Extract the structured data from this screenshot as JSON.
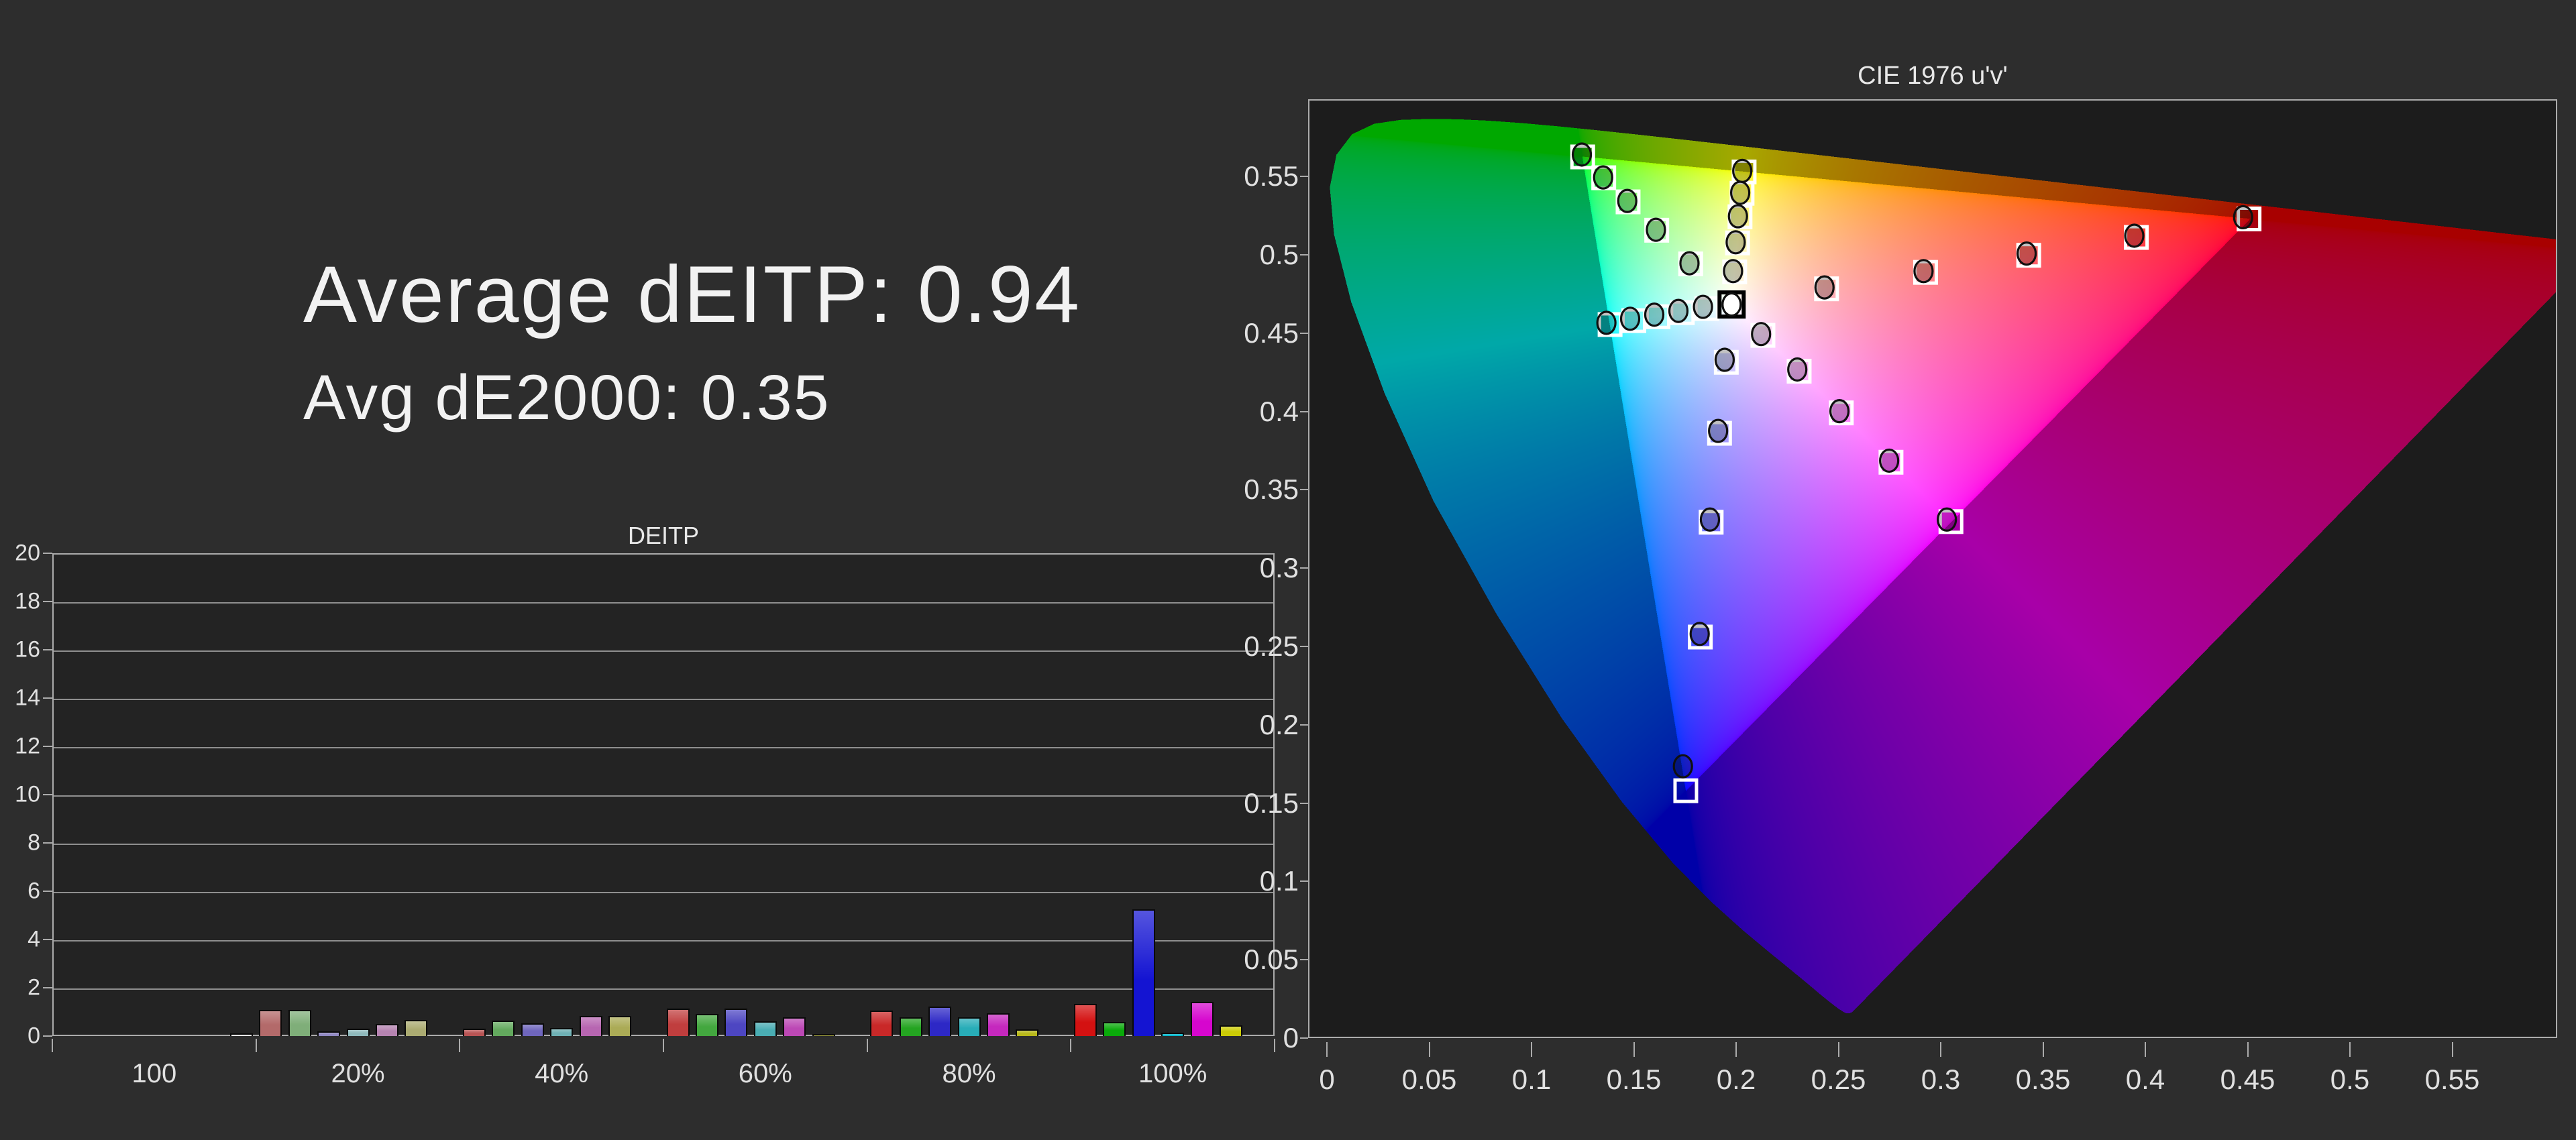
{
  "summary": {
    "line1": "Average dEITP: 0.94",
    "line2": "Avg dE2000: 0.35"
  },
  "chart_data": [
    {
      "type": "bar",
      "title": "DEITP",
      "categories": [
        "100",
        "20%",
        "40%",
        "60%",
        "80%",
        "100%"
      ],
      "bar_names": [
        "red",
        "green",
        "blue",
        "cyan",
        "magenta",
        "yellow",
        "white"
      ],
      "series_by_category": [
        {
          "values": [
            0,
            0,
            0,
            0,
            0,
            0,
            0.12
          ],
          "colors": [
            "#b36a6a",
            "#7fae79",
            "#9088c2",
            "#8fb9bc",
            "#b684b1",
            "#abab72",
            "#f0f0f0"
          ]
        },
        {
          "values": [
            1.07,
            1.07,
            0.2,
            0.3,
            0.5,
            0.68,
            0
          ],
          "colors": [
            "#b36a6a",
            "#7fae79",
            "#9088c2",
            "#8fb9bc",
            "#b684b1",
            "#abab72",
            "#f0f0f0"
          ]
        },
        {
          "values": [
            0.3,
            0.65,
            0.52,
            0.33,
            0.82,
            0.82,
            0
          ],
          "colors": [
            "#b85454",
            "#63a95e",
            "#6f66bd",
            "#6fb1b5",
            "#b766b1",
            "#abab56",
            "#f0f0f0"
          ]
        },
        {
          "values": [
            1.15,
            0.93,
            1.15,
            0.61,
            0.78,
            0.06,
            0
          ],
          "colors": [
            "#c03e3e",
            "#43a73f",
            "#4d46c2",
            "#4aadb3",
            "#bc48b5",
            "#a6a636",
            "#f0f0f0"
          ]
        },
        {
          "values": [
            1.05,
            0.78,
            1.22,
            0.78,
            0.95,
            0.28,
            0
          ],
          "colors": [
            "#c92828",
            "#24a421",
            "#2d28c6",
            "#28adb8",
            "#c528be",
            "#b8b81a",
            "#f0f0f0"
          ]
        },
        {
          "values": [
            1.33,
            0.58,
            5.25,
            0.15,
            1.42,
            0.45,
            0
          ],
          "colors": [
            "#d41111",
            "#0aaa0a",
            "#1414d2",
            "#06b6ca",
            "#d606ce",
            "#cccc06",
            "#f0f0f0"
          ]
        }
      ],
      "ylim": [
        0,
        20
      ],
      "ytick_step": 2,
      "grid": true
    },
    {
      "type": "scatter",
      "title": "CIE 1976 u'v'",
      "xlim": [
        0,
        0.6013
      ],
      "ylim": [
        0,
        0.5993
      ],
      "xticks": [
        0,
        0.05,
        0.1,
        0.15,
        0.2,
        0.25,
        0.3,
        0.35,
        0.4,
        0.45,
        0.5,
        0.55
      ],
      "yticks": [
        0,
        0.05,
        0.1,
        0.15,
        0.2,
        0.25,
        0.3,
        0.35,
        0.4,
        0.45,
        0.5,
        0.55
      ],
      "white_point": {
        "name": "white-D65",
        "u": 0.1978,
        "v": 0.4683
      },
      "gamut_rec709_uv": {
        "red": [
          0.4507,
          0.5229
        ],
        "green": [
          0.125,
          0.5625
        ],
        "blue": [
          0.1754,
          0.1579
        ]
      },
      "outside_gamut_dim_factor": 0.66,
      "targets_uv": [
        {
          "name": "red-20",
          "u": 0.2442,
          "v": 0.4783
        },
        {
          "name": "red-40",
          "u": 0.2926,
          "v": 0.4888
        },
        {
          "name": "red-60",
          "u": 0.343,
          "v": 0.4997
        },
        {
          "name": "red-80",
          "u": 0.3956,
          "v": 0.5111
        },
        {
          "name": "red-100",
          "u": 0.4507,
          "v": 0.5229
        },
        {
          "name": "green-20",
          "u": 0.1778,
          "v": 0.4942
        },
        {
          "name": "green-40",
          "u": 0.1612,
          "v": 0.5157
        },
        {
          "name": "green-60",
          "u": 0.1472,
          "v": 0.5338
        },
        {
          "name": "green-80",
          "u": 0.1353,
          "v": 0.5492
        },
        {
          "name": "green-100",
          "u": 0.125,
          "v": 0.5625
        },
        {
          "name": "blue-20",
          "u": 0.1952,
          "v": 0.4314
        },
        {
          "name": "blue-40",
          "u": 0.1919,
          "v": 0.3861
        },
        {
          "name": "blue-60",
          "u": 0.1878,
          "v": 0.3293
        },
        {
          "name": "blue-80",
          "u": 0.1825,
          "v": 0.256
        },
        {
          "name": "blue-100",
          "u": 0.1754,
          "v": 0.1579
        },
        {
          "name": "cyan-20",
          "u": 0.1857,
          "v": 0.4657
        },
        {
          "name": "cyan-40",
          "u": 0.1737,
          "v": 0.4631
        },
        {
          "name": "cyan-60",
          "u": 0.1618,
          "v": 0.4605
        },
        {
          "name": "cyan-80",
          "u": 0.15,
          "v": 0.458
        },
        {
          "name": "cyan-100",
          "u": 0.1384,
          "v": 0.4555
        },
        {
          "name": "magenta-20",
          "u": 0.2131,
          "v": 0.4486
        },
        {
          "name": "magenta-40",
          "u": 0.2308,
          "v": 0.4257
        },
        {
          "name": "magenta-60",
          "u": 0.2514,
          "v": 0.3991
        },
        {
          "name": "magenta-80",
          "u": 0.2757,
          "v": 0.3676
        },
        {
          "name": "magenta-100",
          "u": 0.305,
          "v": 0.3297
        },
        {
          "name": "yellow-20",
          "u": 0.1993,
          "v": 0.4891
        },
        {
          "name": "yellow-40",
          "u": 0.2007,
          "v": 0.5076
        },
        {
          "name": "yellow-60",
          "u": 0.2019,
          "v": 0.5243
        },
        {
          "name": "yellow-80",
          "u": 0.2029,
          "v": 0.5393
        },
        {
          "name": "yellow-100",
          "u": 0.2039,
          "v": 0.5529
        }
      ],
      "measurements_uv": [
        {
          "name": "meas-red-20",
          "u": 0.2432,
          "v": 0.4792
        },
        {
          "name": "meas-red-40",
          "u": 0.2916,
          "v": 0.4896
        },
        {
          "name": "meas-red-60",
          "u": 0.342,
          "v": 0.5008
        },
        {
          "name": "meas-red-80",
          "u": 0.3946,
          "v": 0.5122
        },
        {
          "name": "meas-red-100",
          "u": 0.4478,
          "v": 0.524
        },
        {
          "name": "meas-green-20",
          "u": 0.1772,
          "v": 0.4946
        },
        {
          "name": "meas-green-40",
          "u": 0.1608,
          "v": 0.516
        },
        {
          "name": "meas-green-60",
          "u": 0.1468,
          "v": 0.5344
        },
        {
          "name": "meas-green-80",
          "u": 0.135,
          "v": 0.5494
        },
        {
          "name": "meas-green-100",
          "u": 0.1246,
          "v": 0.564
        },
        {
          "name": "meas-blue-20",
          "u": 0.1944,
          "v": 0.433
        },
        {
          "name": "meas-blue-40",
          "u": 0.1912,
          "v": 0.3876
        },
        {
          "name": "meas-blue-60",
          "u": 0.1872,
          "v": 0.331
        },
        {
          "name": "meas-blue-80",
          "u": 0.1822,
          "v": 0.258
        },
        {
          "name": "meas-blue-100",
          "u": 0.174,
          "v": 0.1735
        },
        {
          "name": "meas-cyan-20",
          "u": 0.1838,
          "v": 0.4668
        },
        {
          "name": "meas-cyan-40",
          "u": 0.1718,
          "v": 0.4642
        },
        {
          "name": "meas-cyan-60",
          "u": 0.16,
          "v": 0.4618
        },
        {
          "name": "meas-cyan-80",
          "u": 0.1482,
          "v": 0.4592
        },
        {
          "name": "meas-cyan-100",
          "u": 0.1366,
          "v": 0.4566
        },
        {
          "name": "meas-magenta-20",
          "u": 0.2122,
          "v": 0.4494
        },
        {
          "name": "meas-magenta-40",
          "u": 0.2299,
          "v": 0.4268
        },
        {
          "name": "meas-magenta-60",
          "u": 0.2505,
          "v": 0.4002
        },
        {
          "name": "meas-magenta-80",
          "u": 0.2748,
          "v": 0.3686
        },
        {
          "name": "meas-magenta-100",
          "u": 0.303,
          "v": 0.331
        },
        {
          "name": "meas-yellow-20",
          "u": 0.1985,
          "v": 0.4896
        },
        {
          "name": "meas-yellow-40",
          "u": 0.1998,
          "v": 0.508
        },
        {
          "name": "meas-yellow-60",
          "u": 0.2009,
          "v": 0.5246
        },
        {
          "name": "meas-yellow-80",
          "u": 0.202,
          "v": 0.5396
        },
        {
          "name": "meas-yellow-100",
          "u": 0.203,
          "v": 0.5536
        },
        {
          "name": "meas-white",
          "u": 0.1978,
          "v": 0.4683
        }
      ],
      "spectral_locus_xy": [
        [
          0.1741,
          0.005
        ],
        [
          0.174,
          0.005
        ],
        [
          0.1738,
          0.0049
        ],
        [
          0.1736,
          0.0049
        ],
        [
          0.1733,
          0.0048
        ],
        [
          0.173,
          0.0048
        ],
        [
          0.1726,
          0.0048
        ],
        [
          0.1721,
          0.0048
        ],
        [
          0.1714,
          0.0051
        ],
        [
          0.1703,
          0.0058
        ],
        [
          0.1689,
          0.0069
        ],
        [
          0.1669,
          0.0086
        ],
        [
          0.1644,
          0.0109
        ],
        [
          0.1611,
          0.0138
        ],
        [
          0.1566,
          0.0177
        ],
        [
          0.151,
          0.0227
        ],
        [
          0.144,
          0.0297
        ],
        [
          0.1355,
          0.0399
        ],
        [
          0.1241,
          0.0578
        ],
        [
          0.1096,
          0.0868
        ],
        [
          0.0913,
          0.1327
        ],
        [
          0.0687,
          0.2007
        ],
        [
          0.0454,
          0.295
        ],
        [
          0.0235,
          0.4127
        ],
        [
          0.0082,
          0.5384
        ],
        [
          0.0039,
          0.6548
        ],
        [
          0.0139,
          0.7502
        ],
        [
          0.0389,
          0.812
        ],
        [
          0.0743,
          0.8338
        ],
        [
          0.1142,
          0.8262
        ],
        [
          0.1547,
          0.8059
        ],
        [
          0.1929,
          0.7816
        ],
        [
          0.2296,
          0.7543
        ],
        [
          0.2658,
          0.7243
        ],
        [
          0.3016,
          0.6923
        ],
        [
          0.3373,
          0.6589
        ],
        [
          0.3731,
          0.6245
        ],
        [
          0.4087,
          0.5896
        ],
        [
          0.4441,
          0.5547
        ],
        [
          0.4788,
          0.5202
        ],
        [
          0.5125,
          0.4866
        ],
        [
          0.5448,
          0.4544
        ],
        [
          0.5752,
          0.4242
        ],
        [
          0.6029,
          0.3965
        ],
        [
          0.627,
          0.3725
        ],
        [
          0.6482,
          0.3514
        ],
        [
          0.6658,
          0.334
        ],
        [
          0.6801,
          0.3197
        ],
        [
          0.6915,
          0.3083
        ],
        [
          0.7006,
          0.2993
        ],
        [
          0.7079,
          0.292
        ],
        [
          0.714,
          0.2859
        ],
        [
          0.719,
          0.2809
        ],
        [
          0.723,
          0.277
        ],
        [
          0.726,
          0.274
        ],
        [
          0.7283,
          0.2717
        ],
        [
          0.73,
          0.27
        ],
        [
          0.7311,
          0.2689
        ],
        [
          0.732,
          0.268
        ],
        [
          0.7327,
          0.2673
        ],
        [
          0.7334,
          0.2666
        ],
        [
          0.734,
          0.266
        ],
        [
          0.7344,
          0.2656
        ],
        [
          0.7346,
          0.2654
        ],
        [
          0.7347,
          0.2653
        ]
      ]
    }
  ],
  "layout_note": "left: summary text + dEITP bar chart; right: CIE 1976 u'v' chromaticity diagram"
}
